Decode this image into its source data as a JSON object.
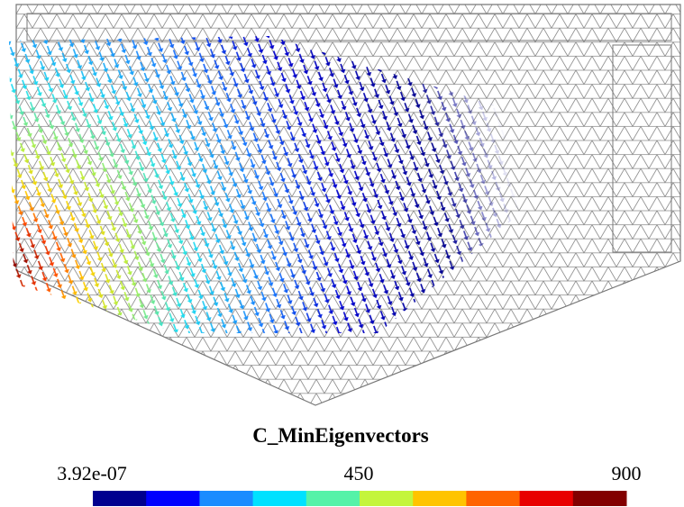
{
  "legend": {
    "title": "C_MinEigenvectors",
    "labels": [
      "3.92e-07",
      "450",
      "900"
    ],
    "colors": [
      "#00008f",
      "#0000ff",
      "#1a8cff",
      "#00e1ff",
      "#55f2a8",
      "#c4f53c",
      "#ffc400",
      "#ff6400",
      "#e80000",
      "#820000"
    ]
  }
}
